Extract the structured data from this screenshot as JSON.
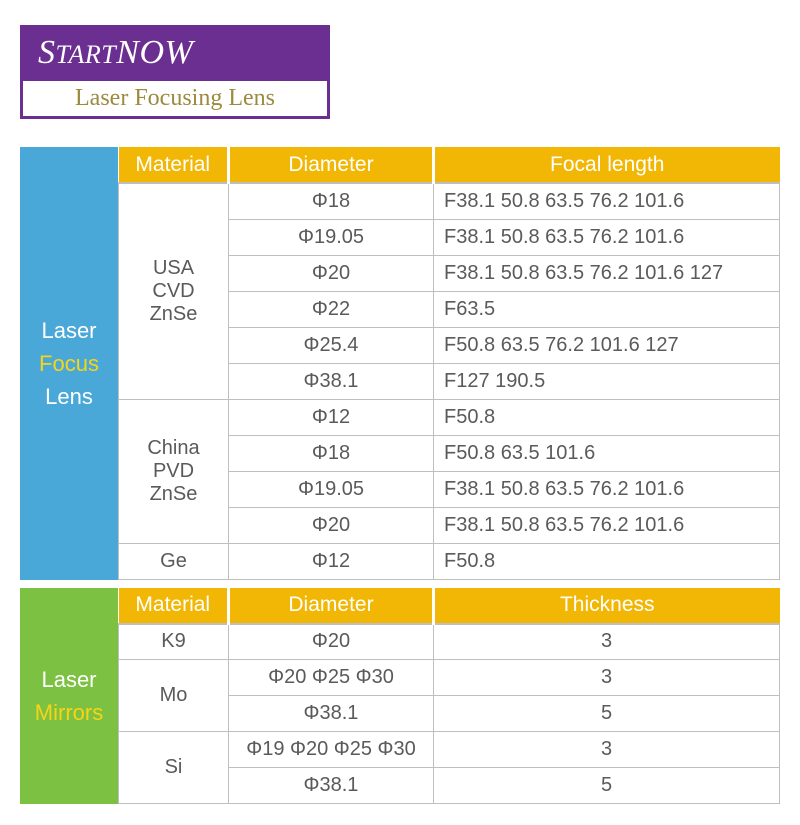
{
  "logo": {
    "brand_prefix": "S",
    "brand_mid": "TART",
    "brand_suffix": "NOW",
    "subtitle": "Laser Focusing Lens"
  },
  "colors": {
    "purple": "#6b2e91",
    "gold_text": "#9c8a3e",
    "header_orange": "#f2b705",
    "side_blue": "#4aa8d8",
    "side_green": "#7cc142",
    "accent_yellow": "#f7d516",
    "cell_text": "#5a5a5a",
    "border": "#bfbfbf"
  },
  "section1": {
    "side": {
      "line1": "Laser",
      "line2": "Focus",
      "line3": "Lens"
    },
    "headers": [
      "Material",
      "Diameter",
      "Focal length"
    ],
    "groups": [
      {
        "material_lines": [
          "USA",
          "CVD",
          "ZnSe"
        ],
        "rows": [
          {
            "dia": "Φ18",
            "val": "F38.1 50.8 63.5 76.2 101.6"
          },
          {
            "dia": "Φ19.05",
            "val": "F38.1 50.8 63.5 76.2 101.6"
          },
          {
            "dia": "Φ20",
            "val": "F38.1 50.8 63.5 76.2 101.6 127"
          },
          {
            "dia": "Φ22",
            "val": "F63.5"
          },
          {
            "dia": "Φ25.4",
            "val": "F50.8 63.5 76.2 101.6 127"
          },
          {
            "dia": "Φ38.1",
            "val": "F127 190.5"
          }
        ]
      },
      {
        "material_lines": [
          "China",
          "PVD",
          "ZnSe"
        ],
        "rows": [
          {
            "dia": "Φ12",
            "val": "F50.8"
          },
          {
            "dia": "Φ18",
            "val": "F50.8 63.5 101.6"
          },
          {
            "dia": "Φ19.05",
            "val": "F38.1 50.8 63.5 76.2 101.6"
          },
          {
            "dia": "Φ20",
            "val": "F38.1 50.8 63.5 76.2 101.6"
          }
        ]
      },
      {
        "material_lines": [
          "Ge"
        ],
        "rows": [
          {
            "dia": "Φ12",
            "val": "F50.8"
          }
        ]
      }
    ]
  },
  "section2": {
    "side": {
      "line1": "Laser",
      "line2": "Mirrors"
    },
    "headers": [
      "Material",
      "Diameter",
      "Thickness"
    ],
    "groups": [
      {
        "material_lines": [
          "K9"
        ],
        "rows": [
          {
            "dia": "Φ20",
            "val": "3"
          }
        ]
      },
      {
        "material_lines": [
          "Mo"
        ],
        "rows": [
          {
            "dia": "Φ20 Φ25 Φ30",
            "val": "3"
          },
          {
            "dia": "Φ38.1",
            "val": "5"
          }
        ]
      },
      {
        "material_lines": [
          "Si"
        ],
        "rows": [
          {
            "dia": "Φ19 Φ20 Φ25 Φ30",
            "val": "3"
          },
          {
            "dia": "Φ38.1",
            "val": "5"
          }
        ]
      }
    ]
  }
}
